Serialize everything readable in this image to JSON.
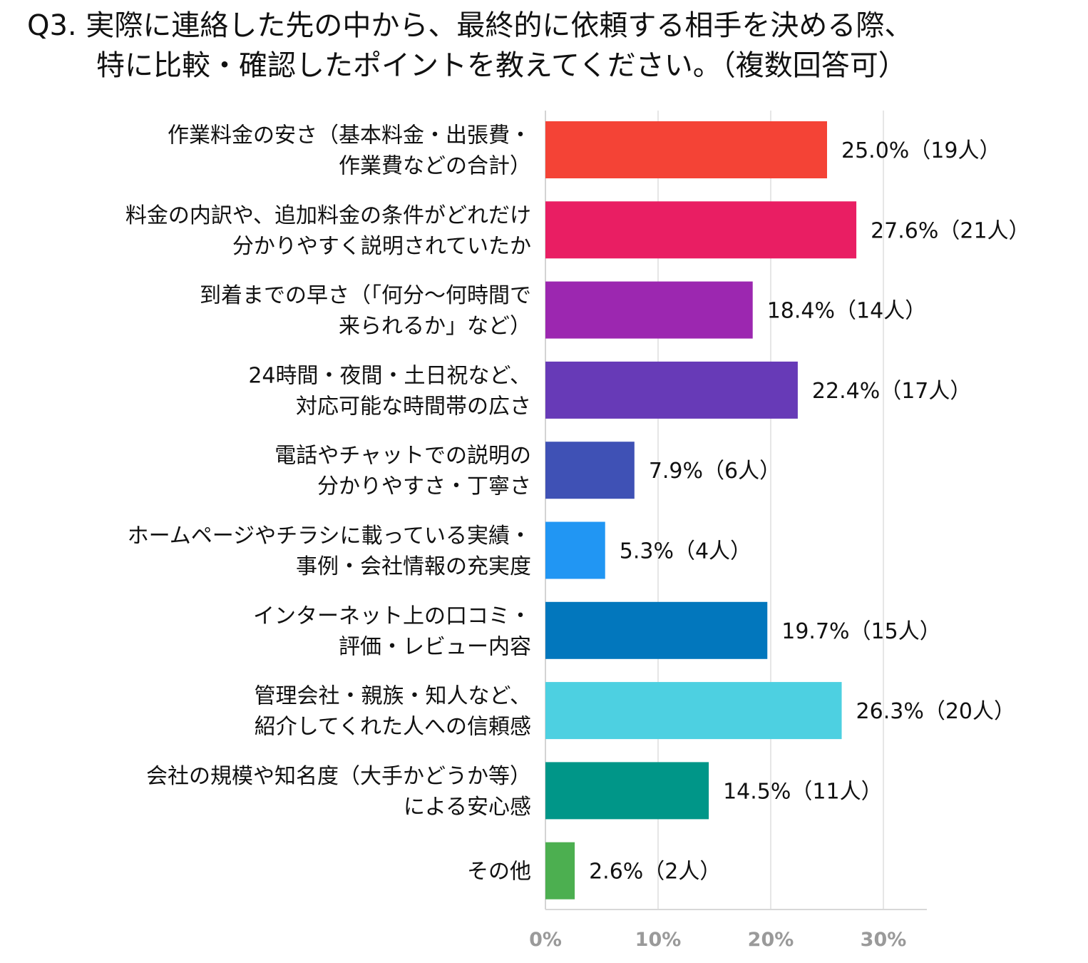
{
  "title": {
    "line1": "Q3. 実際に連絡した先の中から、最終的に依頼する相手を決める際、",
    "line2": "特に比較・確認したポイントを教えてください。（複数回答可）"
  },
  "chart_data": {
    "type": "bar",
    "orientation": "horizontal",
    "title": "Q3. 実際に連絡した先の中から、最終的に依頼する相手を決める際、特に比較・確認したポイントを教えてください。（複数回答可）",
    "categories": [
      [
        "作業料金の安さ（基本料金・出張費・",
        "作業費などの合計）"
      ],
      [
        "料金の内訳や、追加料金の条件がどれだけ",
        "分かりやすく説明されていたか"
      ],
      [
        "到着までの早さ（「何分〜何時間で",
        "来られるか」など）"
      ],
      [
        "24時間・夜間・土日祝など、",
        "対応可能な時間帯の広さ"
      ],
      [
        "電話やチャットでの説明の",
        "分かりやすさ・丁寧さ"
      ],
      [
        "ホームページやチラシに載っている実績・",
        "事例・会社情報の充実度"
      ],
      [
        "インターネット上の口コミ・",
        "評価・レビュー内容"
      ],
      [
        "管理会社・親族・知人など、",
        "紹介してくれた人への信頼感"
      ],
      [
        "会社の規模や知名度（大手かどうか等）",
        "による安心感"
      ],
      [
        "その他"
      ]
    ],
    "values": [
      25.0,
      27.6,
      18.4,
      22.4,
      7.9,
      5.3,
      19.7,
      26.3,
      14.5,
      2.6
    ],
    "counts": [
      19,
      21,
      14,
      17,
      6,
      4,
      15,
      20,
      11,
      2
    ],
    "value_labels": [
      "25.0%（19人）",
      "27.6%（21人）",
      "18.4%（14人）",
      "22.4%（17人）",
      "7.9%（6人）",
      "5.3%（4人）",
      "19.7%（15人）",
      "26.3%（20人）",
      "14.5%（11人）",
      "2.6%（2人）"
    ],
    "colors": [
      "#f44336",
      "#e91e63",
      "#9c27b0",
      "#673ab7",
      "#3f51b5",
      "#2196f3",
      "#0277bd",
      "#4dd0e1",
      "#009688",
      "#4caf50"
    ],
    "xticks": [
      "0%",
      "10%",
      "20%",
      "30%"
    ],
    "xlim": [
      0,
      34
    ],
    "grid": true
  }
}
